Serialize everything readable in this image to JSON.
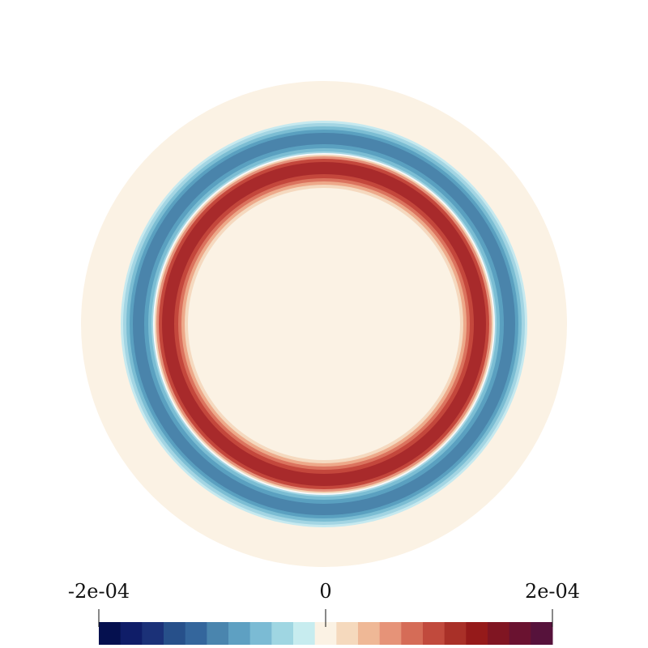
{
  "chart_data": {
    "type": "colorbar",
    "clim": [
      -0.0002,
      0.0002
    ],
    "ticks": [
      {
        "value": -0.0002,
        "label": "-2e-04"
      },
      0,
      {
        "value": 0.0002,
        "label": "2e-04"
      }
    ],
    "colors": [
      "#05104f",
      "#0f1d68",
      "#1b3178",
      "#27508a",
      "#34669c",
      "#4a85ae",
      "#5ea0c2",
      "#7bbbd4",
      "#9fd6e2",
      "#c7ecef",
      "#fbf2e4",
      "#f5d9bd",
      "#efb896",
      "#e69378",
      "#d56c57",
      "#c14a3d",
      "#a93028",
      "#951a1a",
      "#801522",
      "#6a1230",
      "#56123b"
    ]
  }
}
